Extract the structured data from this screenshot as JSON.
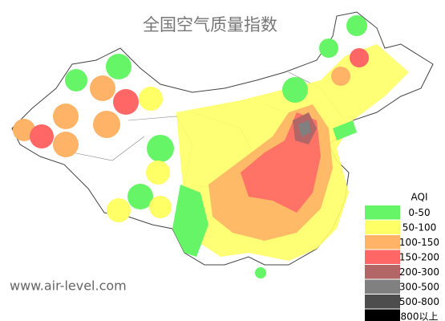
{
  "title": "全国空气质量指数",
  "legend": {
    "title": "AQI",
    "items": [
      {
        "label": "0-50",
        "color": "#66f566"
      },
      {
        "label": "50-100",
        "color": "#ffff66"
      },
      {
        "label": "100-150",
        "color": "#ffb366"
      },
      {
        "label": "150-200",
        "color": "#ff6666"
      },
      {
        "label": "200-300",
        "color": "#b36666"
      },
      {
        "label": "300-500",
        "color": "#808080"
      },
      {
        "label": "500-800",
        "color": "#4d4d4d"
      },
      {
        "label": "800以上",
        "color": "#000000"
      }
    ]
  },
  "watermark": "www.air-level.com"
}
